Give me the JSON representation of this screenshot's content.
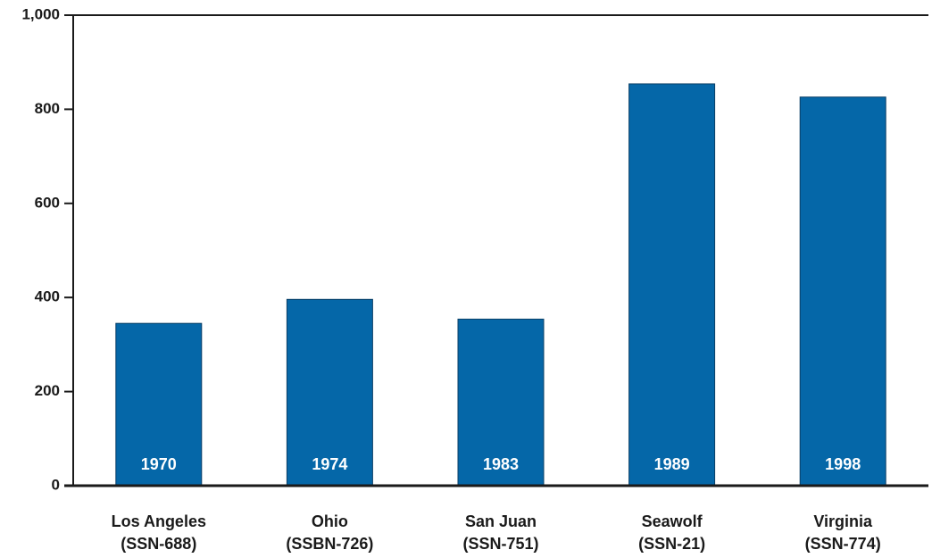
{
  "colors": {
    "bar": "#0567a8",
    "axis": "#1a1a1a",
    "bar_label": "#ffffff"
  },
  "chart_data": {
    "type": "bar",
    "title": "",
    "xlabel": "",
    "ylabel": "",
    "ylim": [
      0,
      1000
    ],
    "yticks": [
      0,
      200,
      400,
      600,
      800,
      1000
    ],
    "ytick_labels": [
      "0",
      "200",
      "400",
      "600",
      "800",
      "1,000"
    ],
    "grid": false,
    "legend": "none",
    "categories": [
      {
        "name": "Los Angeles",
        "hull": "(SSN-688)"
      },
      {
        "name": "Ohio",
        "hull": "(SSBN-726)"
      },
      {
        "name": "San Juan",
        "hull": "(SSN-751)"
      },
      {
        "name": "Seawolf",
        "hull": "(SSN-21)"
      },
      {
        "name": "Virginia",
        "hull": "(SSN-774)"
      }
    ],
    "values": [
      345,
      396,
      354,
      854,
      826
    ],
    "bar_labels": [
      "1970",
      "1974",
      "1983",
      "1989",
      "1998"
    ]
  }
}
